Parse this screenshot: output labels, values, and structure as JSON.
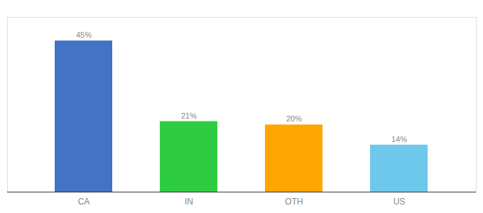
{
  "chart_data": {
    "type": "bar",
    "categories": [
      "CA",
      "IN",
      "OTH",
      "US"
    ],
    "values": [
      45,
      21,
      20,
      14
    ],
    "value_labels": [
      "45%",
      "21%",
      "20%",
      "14%"
    ],
    "colors": [
      "#4472C4",
      "#2ECC40",
      "#FFA500",
      "#6DC8EC"
    ],
    "ylim": [
      0,
      52
    ],
    "grid": false,
    "data_labels": true,
    "tick_labels": "x"
  }
}
